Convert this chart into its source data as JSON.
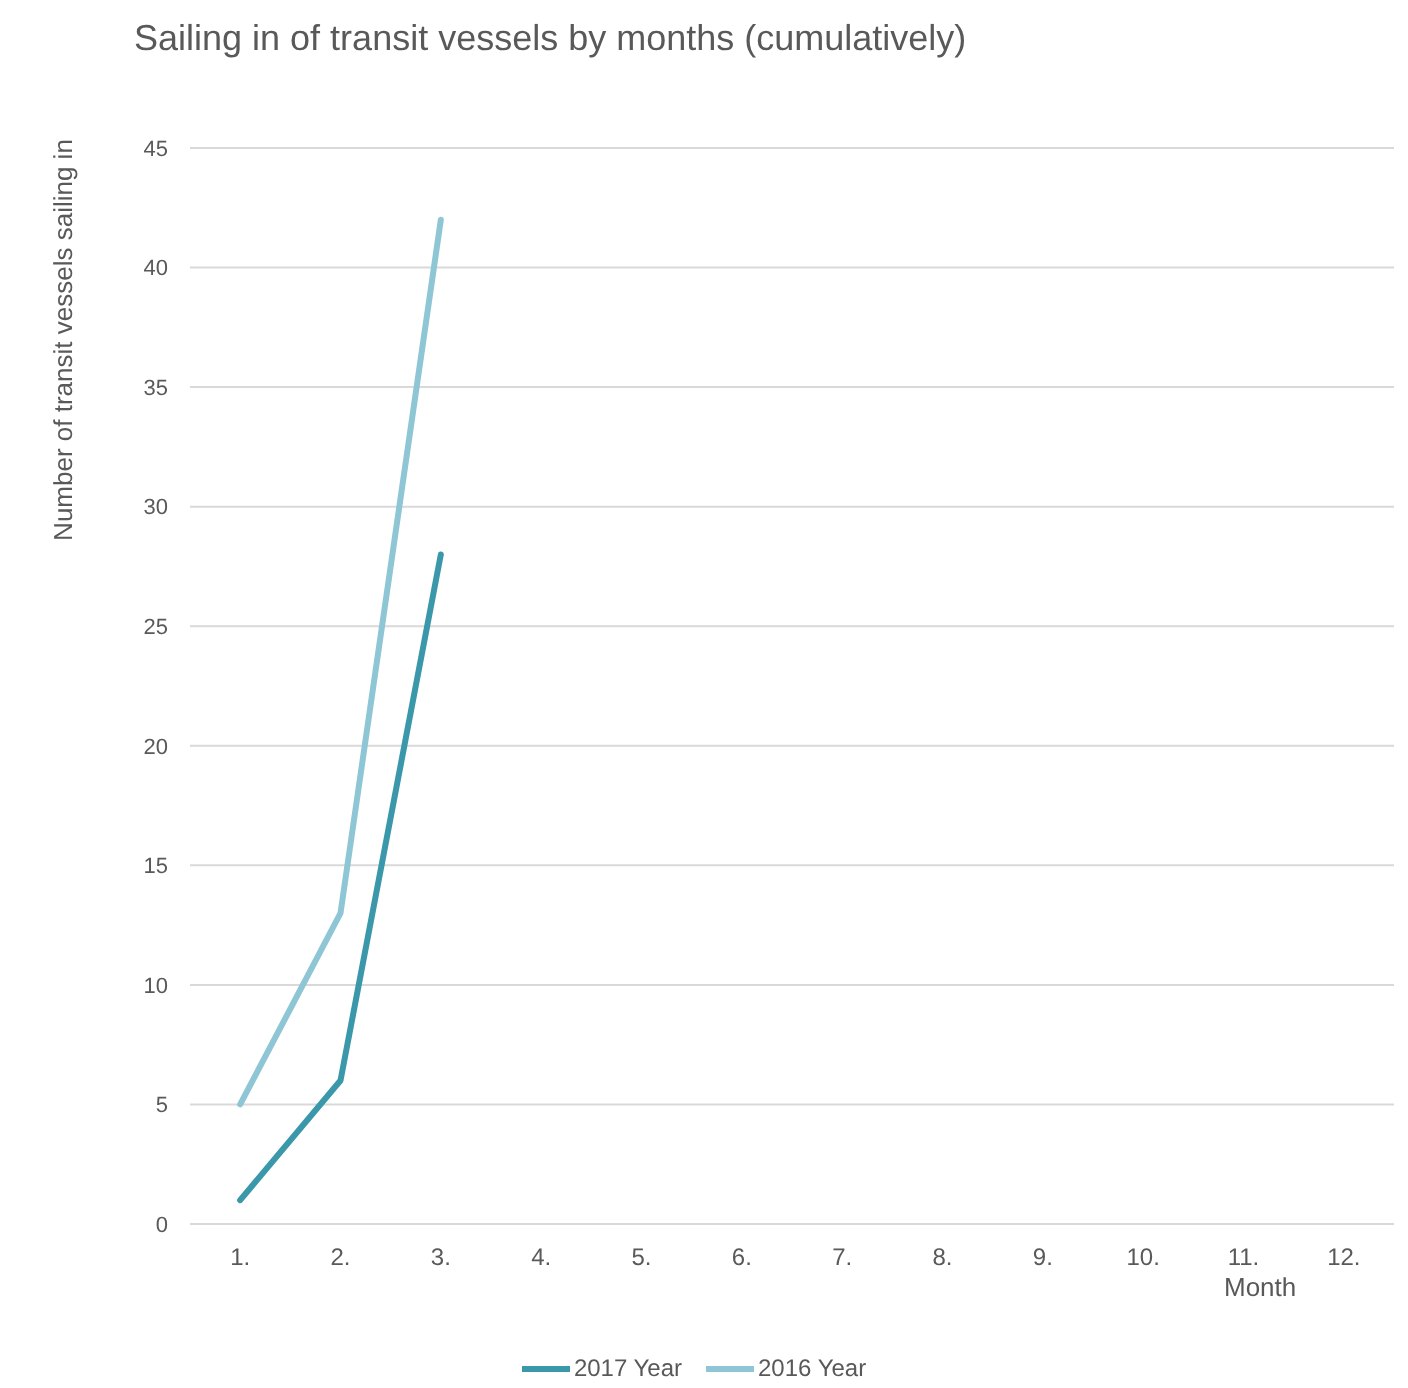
{
  "chart_data": {
    "type": "line",
    "title": "Sailing in of transit vessels by months (cumulatively)",
    "xlabel": "Month",
    "ylabel": "Number of transit vessels sailing in",
    "categories": [
      "1.",
      "2.",
      "3.",
      "4.",
      "5.",
      "6.",
      "7.",
      "8.",
      "9.",
      "10.",
      "11.",
      "12."
    ],
    "series": [
      {
        "name": "2017 Year",
        "color": "#3a98aa",
        "values": [
          1,
          6,
          28,
          null,
          null,
          null,
          null,
          null,
          null,
          null,
          null,
          null
        ]
      },
      {
        "name": "2016 Year",
        "color": "#8ec6d5",
        "values": [
          5,
          13,
          42,
          null,
          null,
          null,
          null,
          null,
          null,
          null,
          null,
          null
        ]
      }
    ],
    "ylim": [
      0,
      45
    ],
    "yticks": [
      0,
      5,
      10,
      15,
      20,
      25,
      30,
      35,
      40,
      45
    ],
    "grid": "y",
    "legend": "bottom",
    "marker": "none",
    "line_style": "solid"
  }
}
